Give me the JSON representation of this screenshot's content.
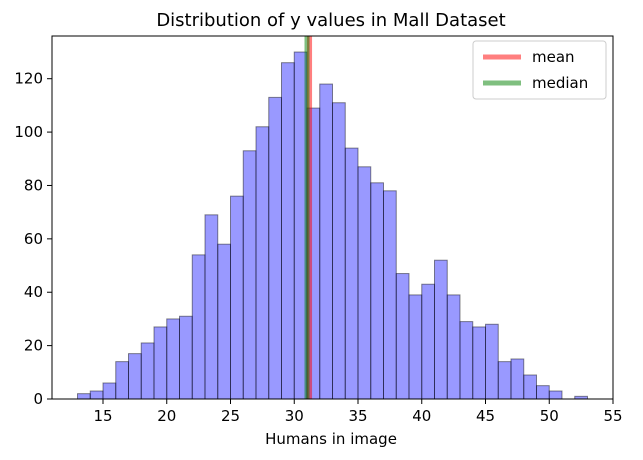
{
  "chart_data": {
    "type": "bar",
    "subtype": "histogram",
    "title": "Distribution of y values in Mall Dataset",
    "xlabel": "Humans in image",
    "ylabel": "",
    "xlim": [
      11.0,
      55.0
    ],
    "ylim": [
      0,
      136
    ],
    "xticks": [
      15,
      20,
      25,
      30,
      35,
      40,
      45,
      50,
      55
    ],
    "yticks": [
      0,
      20,
      40,
      60,
      80,
      100,
      120
    ],
    "grid": false,
    "legend_position": "top-right",
    "bin_width": 1.0,
    "bins": [
      {
        "x0": 13,
        "x1": 14,
        "count": 2
      },
      {
        "x0": 14,
        "x1": 15,
        "count": 3
      },
      {
        "x0": 15,
        "x1": 16,
        "count": 6
      },
      {
        "x0": 16,
        "x1": 17,
        "count": 14
      },
      {
        "x0": 17,
        "x1": 18,
        "count": 17
      },
      {
        "x0": 18,
        "x1": 19,
        "count": 21
      },
      {
        "x0": 19,
        "x1": 20,
        "count": 27
      },
      {
        "x0": 20,
        "x1": 21,
        "count": 30
      },
      {
        "x0": 21,
        "x1": 22,
        "count": 31
      },
      {
        "x0": 22,
        "x1": 23,
        "count": 54
      },
      {
        "x0": 23,
        "x1": 24,
        "count": 69
      },
      {
        "x0": 24,
        "x1": 25,
        "count": 58
      },
      {
        "x0": 25,
        "x1": 26,
        "count": 76
      },
      {
        "x0": 26,
        "x1": 27,
        "count": 93
      },
      {
        "x0": 27,
        "x1": 28,
        "count": 102
      },
      {
        "x0": 28,
        "x1": 29,
        "count": 113
      },
      {
        "x0": 29,
        "x1": 30,
        "count": 126
      },
      {
        "x0": 30,
        "x1": 31,
        "count": 130
      },
      {
        "x0": 31,
        "x1": 32,
        "count": 109
      },
      {
        "x0": 32,
        "x1": 33,
        "count": 118
      },
      {
        "x0": 33,
        "x1": 34,
        "count": 111
      },
      {
        "x0": 34,
        "x1": 35,
        "count": 94
      },
      {
        "x0": 35,
        "x1": 36,
        "count": 87
      },
      {
        "x0": 36,
        "x1": 37,
        "count": 81
      },
      {
        "x0": 37,
        "x1": 38,
        "count": 78
      },
      {
        "x0": 38,
        "x1": 39,
        "count": 47
      },
      {
        "x0": 39,
        "x1": 40,
        "count": 39
      },
      {
        "x0": 40,
        "x1": 41,
        "count": 43
      },
      {
        "x0": 41,
        "x1": 42,
        "count": 52
      },
      {
        "x0": 42,
        "x1": 43,
        "count": 39
      },
      {
        "x0": 43,
        "x1": 44,
        "count": 29
      },
      {
        "x0": 44,
        "x1": 45,
        "count": 27
      },
      {
        "x0": 45,
        "x1": 46,
        "count": 28
      },
      {
        "x0": 46,
        "x1": 47,
        "count": 14
      },
      {
        "x0": 47,
        "x1": 48,
        "count": 15
      },
      {
        "x0": 48,
        "x1": 49,
        "count": 9
      },
      {
        "x0": 49,
        "x1": 50,
        "count": 5
      },
      {
        "x0": 50,
        "x1": 51,
        "count": 3
      },
      {
        "x0": 52,
        "x1": 53,
        "count": 1
      }
    ],
    "reference_lines": [
      {
        "name": "mean",
        "x": 31.2,
        "color": "#ff0000",
        "opacity": 0.5
      },
      {
        "name": "median",
        "x": 31.0,
        "color": "#008000",
        "opacity": 0.5
      }
    ],
    "colors": {
      "bar_fill": "#0000ff",
      "bar_fill_opacity": 0.4,
      "bar_edge": "#000000"
    }
  }
}
